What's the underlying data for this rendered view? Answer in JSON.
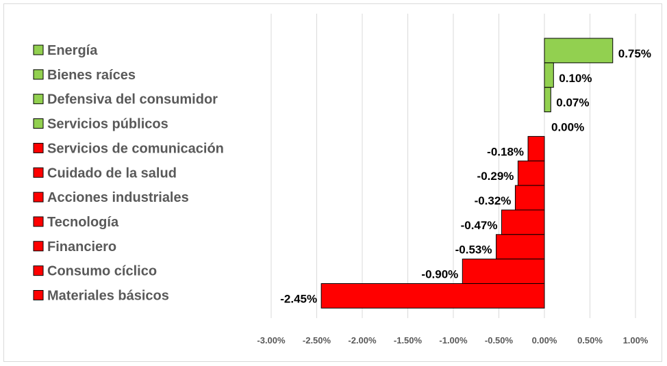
{
  "chart_data": {
    "type": "bar",
    "orientation": "horizontal",
    "categories": [
      "Energía",
      "Bienes raíces",
      "Defensiva del consumidor",
      "Servicios públicos",
      "Servicios de comunicación",
      "Cuidado de la salud",
      "Acciones industriales",
      "Tecnología",
      "Financiero",
      "Consumo cíclico",
      "Materiales básicos"
    ],
    "values": [
      0.75,
      0.1,
      0.07,
      0.0,
      -0.18,
      -0.29,
      -0.32,
      -0.47,
      -0.53,
      -0.9,
      -2.45
    ],
    "data_labels": [
      "0.75%",
      "0.10%",
      "0.07%",
      "0.00%",
      "-0.18%",
      "-0.29%",
      "-0.32%",
      "-0.47%",
      "-0.53%",
      "-0.90%",
      "-2.45%"
    ],
    "xlim": [
      -3.0,
      1.0
    ],
    "x_ticks": [
      -3.0,
      -2.5,
      -2.0,
      -1.5,
      -1.0,
      -0.5,
      0.0,
      0.5,
      1.0
    ],
    "x_tick_labels": [
      "-3.00%",
      "-2.50%",
      "-2.00%",
      "-1.50%",
      "-1.00%",
      "-0.50%",
      "0.00%",
      "0.50%",
      "1.00%"
    ],
    "colors": {
      "positive": "#92d050",
      "negative": "#ff0000",
      "bar_border": "#000000",
      "grid": "#d9d9d9"
    },
    "grid": true,
    "legend": "left",
    "title": "",
    "xlabel": "",
    "ylabel": ""
  }
}
